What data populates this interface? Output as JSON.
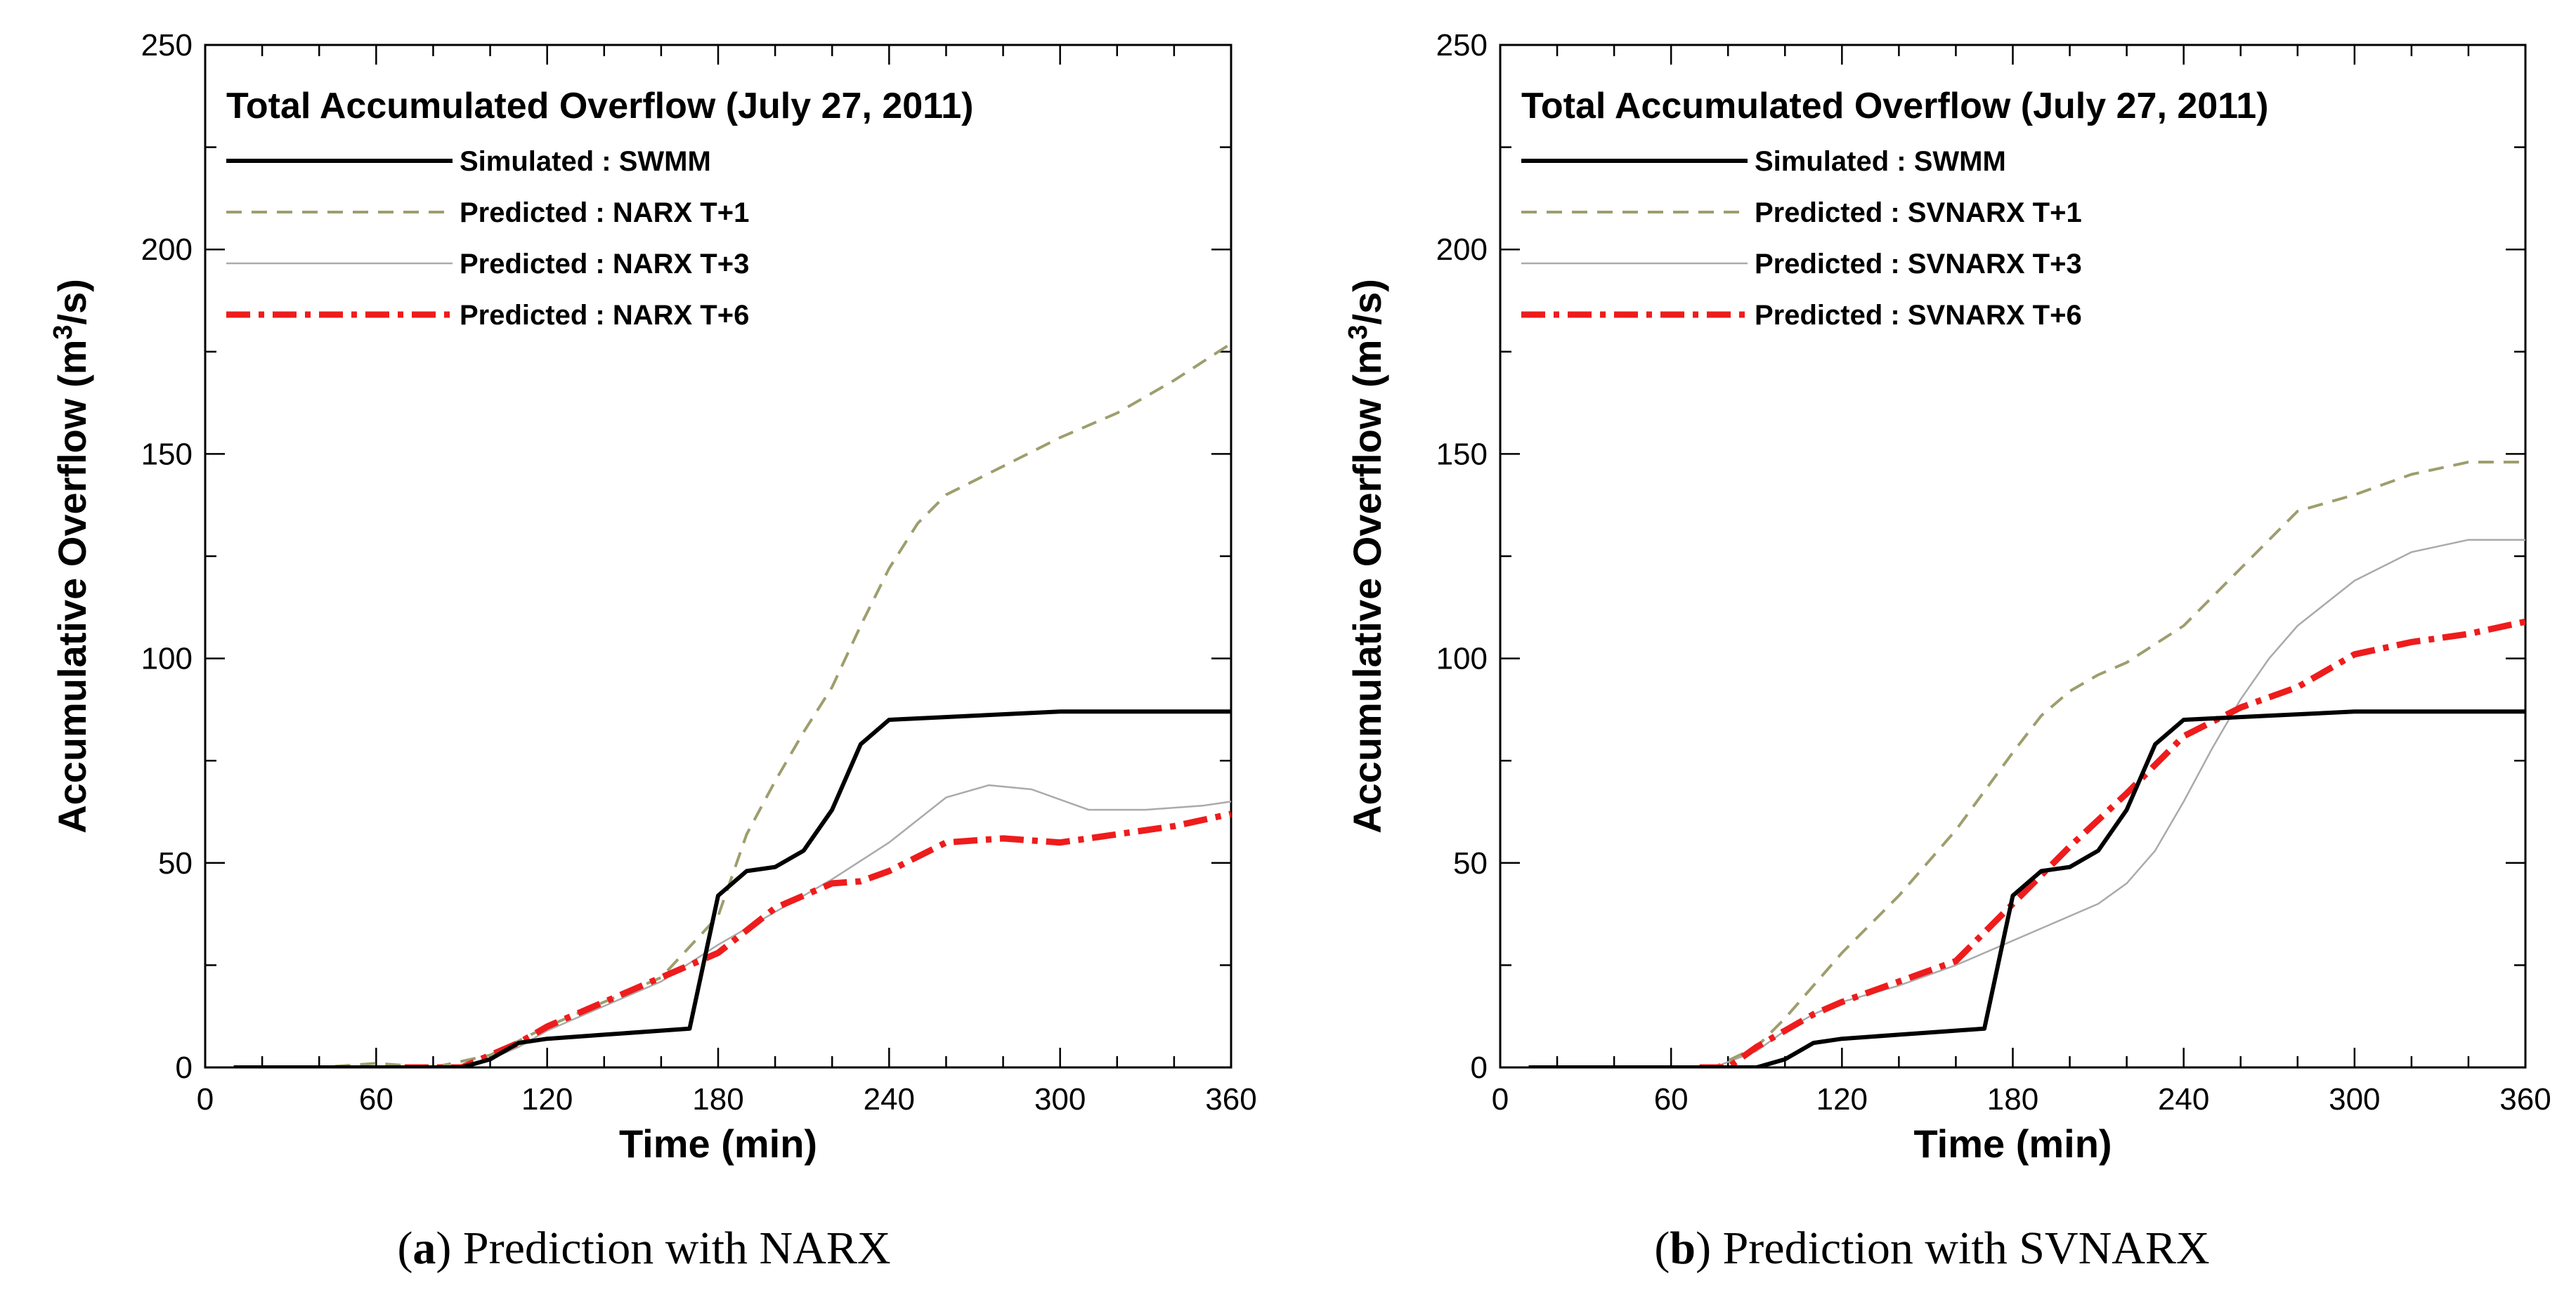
{
  "captions": [
    {
      "letter": "a",
      "text": "Prediction with NARX"
    },
    {
      "letter": "b",
      "text": "Prediction with SVNARX"
    }
  ],
  "chart_data": [
    {
      "type": "line",
      "title": "Total Accumulated Overflow (July 27, 2011)",
      "xlabel": "Time (min)",
      "ylabel": "Accumulative Overflow (m3/s)",
      "xlim": [
        0,
        360
      ],
      "ylim": [
        0,
        250
      ],
      "xticks": [
        0,
        60,
        120,
        180,
        240,
        300,
        360
      ],
      "yticks": [
        0,
        50,
        100,
        150,
        200,
        250
      ],
      "legend_position": "top-left",
      "series": [
        {
          "name": "Simulated : SWMM",
          "color": "#000000",
          "style": "solid-thick",
          "x": [
            10,
            60,
            90,
            100,
            110,
            120,
            140,
            160,
            170,
            180,
            190,
            200,
            210,
            220,
            230,
            240,
            270,
            300,
            330,
            360
          ],
          "y": [
            0,
            0,
            0,
            2,
            6,
            7,
            8,
            9,
            9.5,
            42,
            48,
            49,
            53,
            63,
            79,
            85,
            86,
            87,
            87,
            87
          ]
        },
        {
          "name": "Predicted : NARX T+1",
          "color": "#9e9e6e",
          "style": "dashed",
          "x": [
            10,
            40,
            60,
            80,
            100,
            120,
            140,
            160,
            180,
            190,
            200,
            210,
            220,
            230,
            240,
            250,
            260,
            280,
            300,
            320,
            340,
            360
          ],
          "y": [
            0,
            0,
            1,
            0,
            3,
            10,
            16,
            22,
            37,
            57,
            70,
            82,
            93,
            108,
            122,
            133,
            140,
            147,
            154,
            160,
            168,
            177
          ]
        },
        {
          "name": "Predicted : NARX T+3",
          "color": "#aaaaaa",
          "style": "solid-thin",
          "x": [
            10,
            60,
            80,
            90,
            100,
            110,
            120,
            140,
            160,
            180,
            200,
            220,
            240,
            260,
            275,
            290,
            310,
            330,
            350,
            360
          ],
          "y": [
            0,
            0,
            0,
            0,
            2,
            5,
            9,
            15,
            21,
            30,
            38,
            46,
            55,
            66,
            69,
            68,
            63,
            63,
            64,
            65
          ]
        },
        {
          "name": "Predicted : NARX T+6",
          "color": "#ee1c1c",
          "style": "dashdot",
          "x": [
            70,
            80,
            90,
            100,
            110,
            120,
            140,
            160,
            180,
            200,
            220,
            230,
            240,
            260,
            280,
            300,
            320,
            340,
            360
          ],
          "y": [
            0,
            0,
            0,
            3,
            6,
            10,
            16,
            22,
            28,
            39,
            45,
            45.5,
            48,
            55,
            56,
            55,
            57,
            59,
            62
          ]
        }
      ]
    },
    {
      "type": "line",
      "title": "Total Accumulated Overflow (July 27, 2011)",
      "xlabel": "Time (min)",
      "ylabel": "Accumulative Overflow (m3/s)",
      "xlim": [
        0,
        360
      ],
      "ylim": [
        0,
        250
      ],
      "xticks": [
        0,
        60,
        120,
        180,
        240,
        300,
        360
      ],
      "yticks": [
        0,
        50,
        100,
        150,
        200,
        250
      ],
      "legend_position": "top-left",
      "series": [
        {
          "name": "Simulated : SWMM",
          "color": "#000000",
          "style": "solid-thick",
          "x": [
            10,
            60,
            90,
            100,
            110,
            120,
            140,
            160,
            170,
            180,
            190,
            200,
            210,
            220,
            230,
            240,
            270,
            300,
            330,
            360
          ],
          "y": [
            0,
            0,
            0,
            2,
            6,
            7,
            8,
            9,
            9.5,
            42,
            48,
            49,
            53,
            63,
            79,
            85,
            86,
            87,
            87,
            87
          ]
        },
        {
          "name": "Predicted : SVNARX T+1",
          "color": "#9e9e6e",
          "style": "dashed",
          "x": [
            10,
            40,
            60,
            75,
            90,
            100,
            120,
            140,
            160,
            180,
            190,
            200,
            210,
            220,
            240,
            260,
            280,
            300,
            320,
            340,
            360
          ],
          "y": [
            0,
            0,
            0,
            0,
            5,
            12,
            28,
            42,
            58,
            77,
            86,
            92,
            96,
            99,
            108,
            122,
            136,
            140,
            145,
            148,
            148
          ]
        },
        {
          "name": "Predicted : SVNARX T+3",
          "color": "#aaaaaa",
          "style": "solid-thin",
          "x": [
            10,
            60,
            75,
            90,
            100,
            110,
            120,
            140,
            160,
            180,
            200,
            210,
            220,
            230,
            240,
            250,
            260,
            270,
            280,
            300,
            320,
            340,
            360
          ],
          "y": [
            0,
            0,
            0,
            4,
            9,
            13,
            16,
            20,
            25,
            31,
            37,
            40,
            45,
            53,
            65,
            78,
            90,
            100,
            108,
            119,
            126,
            129,
            129
          ]
        },
        {
          "name": "Predicted : SVNARX T+6",
          "color": "#ee1c1c",
          "style": "dashdot",
          "x": [
            70,
            80,
            90,
            100,
            110,
            120,
            140,
            160,
            180,
            200,
            220,
            240,
            260,
            280,
            300,
            320,
            340,
            360
          ],
          "y": [
            0,
            0,
            5,
            9,
            13,
            16,
            21,
            26,
            40,
            54,
            67,
            81,
            88,
            93,
            101,
            104,
            106,
            109
          ]
        }
      ]
    }
  ]
}
